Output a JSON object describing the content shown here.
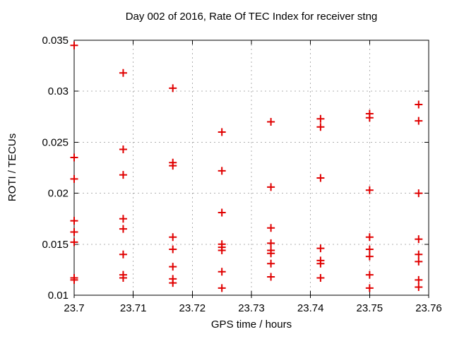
{
  "chart_data": {
    "type": "scatter",
    "title": "Day 002 of 2016, Rate Of TEC Index for receiver stng",
    "xlabel": "GPS time / hours",
    "ylabel": "ROTI / TECUs",
    "xlim": [
      23.7,
      23.76
    ],
    "ylim": [
      0.01,
      0.035
    ],
    "xticks": [
      23.7,
      23.71,
      23.72,
      23.73,
      23.74,
      23.75,
      23.76
    ],
    "xtick_labels": [
      "23.7",
      "23.71",
      "23.72",
      "23.73",
      "23.74",
      "23.75",
      "23.76"
    ],
    "yticks": [
      0.01,
      0.015,
      0.02,
      0.025,
      0.03,
      0.035
    ],
    "ytick_labels": [
      "0.01",
      "0.015",
      "0.02",
      "0.025",
      "0.03",
      "0.035"
    ],
    "grid": true,
    "legend": "none",
    "marker": {
      "shape": "plus",
      "color": "#e00000",
      "half_size": 5.5,
      "stroke_width": 2
    },
    "series": [
      {
        "name": "ROTI",
        "points": [
          {
            "x": 23.7,
            "y": 0.0345
          },
          {
            "x": 23.7,
            "y": 0.0235
          },
          {
            "x": 23.7,
            "y": 0.0214
          },
          {
            "x": 23.7,
            "y": 0.0173
          },
          {
            "x": 23.7,
            "y": 0.0162
          },
          {
            "x": 23.7,
            "y": 0.0152
          },
          {
            "x": 23.7,
            "y": 0.0117
          },
          {
            "x": 23.7,
            "y": 0.0115
          },
          {
            "x": 23.7083,
            "y": 0.0318
          },
          {
            "x": 23.7083,
            "y": 0.0243
          },
          {
            "x": 23.7083,
            "y": 0.0218
          },
          {
            "x": 23.7083,
            "y": 0.0175
          },
          {
            "x": 23.7083,
            "y": 0.0165
          },
          {
            "x": 23.7083,
            "y": 0.014
          },
          {
            "x": 23.7083,
            "y": 0.012
          },
          {
            "x": 23.7083,
            "y": 0.0117
          },
          {
            "x": 23.7167,
            "y": 0.0303
          },
          {
            "x": 23.7167,
            "y": 0.023
          },
          {
            "x": 23.7167,
            "y": 0.0227
          },
          {
            "x": 23.7167,
            "y": 0.0157
          },
          {
            "x": 23.7167,
            "y": 0.0145
          },
          {
            "x": 23.7167,
            "y": 0.0128
          },
          {
            "x": 23.7167,
            "y": 0.0116
          },
          {
            "x": 23.7167,
            "y": 0.0112
          },
          {
            "x": 23.725,
            "y": 0.026
          },
          {
            "x": 23.725,
            "y": 0.0222
          },
          {
            "x": 23.725,
            "y": 0.0181
          },
          {
            "x": 23.725,
            "y": 0.015
          },
          {
            "x": 23.725,
            "y": 0.0147
          },
          {
            "x": 23.725,
            "y": 0.0144
          },
          {
            "x": 23.725,
            "y": 0.0123
          },
          {
            "x": 23.725,
            "y": 0.0107
          },
          {
            "x": 23.7333,
            "y": 0.027
          },
          {
            "x": 23.7333,
            "y": 0.0206
          },
          {
            "x": 23.7333,
            "y": 0.0166
          },
          {
            "x": 23.7333,
            "y": 0.0151
          },
          {
            "x": 23.7333,
            "y": 0.0144
          },
          {
            "x": 23.7333,
            "y": 0.0141
          },
          {
            "x": 23.7333,
            "y": 0.0131
          },
          {
            "x": 23.7333,
            "y": 0.0118
          },
          {
            "x": 23.7417,
            "y": 0.0273
          },
          {
            "x": 23.7417,
            "y": 0.0265
          },
          {
            "x": 23.7417,
            "y": 0.0215
          },
          {
            "x": 23.7417,
            "y": 0.0146
          },
          {
            "x": 23.7417,
            "y": 0.0134
          },
          {
            "x": 23.7417,
            "y": 0.0131
          },
          {
            "x": 23.7417,
            "y": 0.0117
          },
          {
            "x": 23.75,
            "y": 0.0278
          },
          {
            "x": 23.75,
            "y": 0.0274
          },
          {
            "x": 23.75,
            "y": 0.0203
          },
          {
            "x": 23.75,
            "y": 0.0157
          },
          {
            "x": 23.75,
            "y": 0.0145
          },
          {
            "x": 23.75,
            "y": 0.0138
          },
          {
            "x": 23.75,
            "y": 0.012
          },
          {
            "x": 23.75,
            "y": 0.0107
          },
          {
            "x": 23.7583,
            "y": 0.0287
          },
          {
            "x": 23.7583,
            "y": 0.0271
          },
          {
            "x": 23.7583,
            "y": 0.02
          },
          {
            "x": 23.7583,
            "y": 0.0155
          },
          {
            "x": 23.7583,
            "y": 0.014
          },
          {
            "x": 23.7583,
            "y": 0.0133
          },
          {
            "x": 23.7583,
            "y": 0.0115
          },
          {
            "x": 23.7583,
            "y": 0.0108
          }
        ]
      }
    ]
  },
  "colors": {
    "background": "#ffffff",
    "frame": "#000000",
    "grid": "#b0b0b0",
    "marker": "#e00000",
    "text": "#000000"
  }
}
